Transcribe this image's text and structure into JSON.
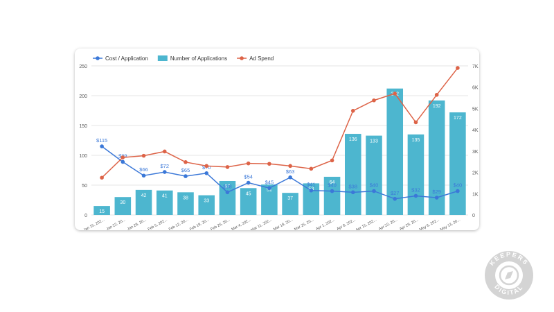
{
  "chart_data": {
    "type": "bar+line",
    "categories": [
      "Jan 15, 202...",
      "Jan 22, 20...",
      "Jan 29, 20...",
      "Feb 5, 202...",
      "Feb 12, 20...",
      "Feb 19, 20...",
      "Feb 26, 20...",
      "Mar 4, 202...",
      "Mar 11, 202...",
      "Mar 18, 20...",
      "Mar 25, 20...",
      "Apr 1, 202...",
      "Apr 8, 202...",
      "Apr 15, 202...",
      "Apr 22, 20...",
      "Apr 29, 20...",
      "May 6, 202...",
      "May 13, 20..."
    ],
    "series": [
      {
        "name": "Cost / Application",
        "type": "line",
        "axis": "left",
        "color": "#3b78d8",
        "values": [
          115,
          89,
          66,
          72,
          65,
          70,
          38,
          54,
          45,
          63,
          41,
          40,
          38,
          40,
          27,
          32,
          29,
          40
        ],
        "labels": [
          "$115",
          "$89",
          "$66",
          "$72",
          "$65",
          "$70",
          "$38",
          "$54",
          "$45",
          "$63",
          "$41",
          "$40",
          "$38",
          "$40",
          "$27",
          "$32",
          "$29",
          "$40"
        ]
      },
      {
        "name": "Number of Applications",
        "type": "bar",
        "axis": "left",
        "color": "#4db6cf",
        "values": [
          15,
          30,
          42,
          41,
          38,
          33,
          57,
          45,
          51,
          37,
          53,
          64,
          136,
          133,
          212,
          135,
          192,
          172
        ]
      },
      {
        "name": "Ad Spend",
        "type": "line",
        "axis": "right",
        "color": "#dd6347",
        "values": [
          1750,
          2700,
          2780,
          2980,
          2480,
          2300,
          2250,
          2420,
          2400,
          2300,
          2170,
          2560,
          4890,
          5380,
          5700,
          4350,
          5640,
          6900
        ]
      }
    ],
    "y_left": {
      "min": 0,
      "max": 250,
      "ticks": [
        "0",
        "50",
        "100",
        "150",
        "200",
        "250"
      ]
    },
    "y_right": {
      "min": 0,
      "max": 7000,
      "ticks": [
        "0",
        "1K",
        "2K",
        "3K",
        "4K",
        "5K",
        "6K",
        "7K"
      ]
    },
    "grid": true,
    "legend_position": "top-left"
  },
  "watermark": {
    "text": "KEEPERS DIGITAL",
    "color": "#c9c9c9"
  }
}
